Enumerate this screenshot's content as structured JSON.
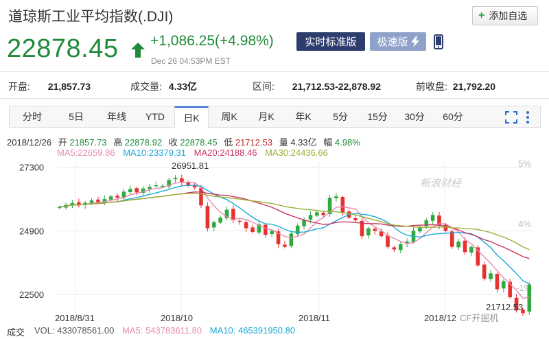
{
  "header": {
    "title": "道琼斯工业平均指数(.DJI)",
    "add_watchlist": "添加自选"
  },
  "quote": {
    "price": "22878.45",
    "change": "+1,086.25(+4.98%)",
    "timestamp": "Dec 26 04:53PM EST",
    "realtime_label": "实时标准版",
    "fast_label": "极速版",
    "color_up": "#1f8a3a"
  },
  "stats": [
    {
      "label": "开盘:",
      "value": "21,857.73"
    },
    {
      "label": "成交量:",
      "value": "4.33亿"
    },
    {
      "label": "区间:",
      "value": "21,712.53-22,878.92"
    },
    {
      "label": "前收盘:",
      "value": "21,792.20"
    }
  ],
  "tabs": [
    "分时",
    "5日",
    "年线",
    "YTD",
    "日K",
    "周K",
    "月K",
    "年K",
    "5分",
    "15分",
    "30分",
    "60分"
  ],
  "active_tab": "日K",
  "ohlc": {
    "date": "2018/12/26",
    "open_label": "开",
    "open": "21857.73",
    "high_label": "高",
    "high": "22878.92",
    "close_label": "收",
    "close": "22878.45",
    "low_label": "低",
    "low": "21712.53",
    "vol_label": "量",
    "vol": "4.33亿",
    "amp_label": "幅",
    "amp": "4.98%"
  },
  "ma": [
    {
      "label": "MA5:",
      "value": "22659.86",
      "color": "#e88ab0"
    },
    {
      "label": "MA10:",
      "value": "23379.31",
      "color": "#1aa9d8"
    },
    {
      "label": "MA20:",
      "value": "24188.46",
      "color": "#c8345e"
    },
    {
      "label": "MA30:",
      "value": "24436.66",
      "color": "#9ab034"
    }
  ],
  "volume": {
    "label": "成交",
    "vol": "VOL: 433078561.00",
    "ma5": "MA5: 543783611.80",
    "ma10": "MA10: 465391950.80"
  },
  "watermark": {
    "sina": "新浪财经",
    "wechat": "CF开掘机"
  },
  "chart_data": {
    "type": "candlestick",
    "ylim": [
      21600,
      27500
    ],
    "yticks": [
      {
        "value": 27300,
        "label": "27300"
      },
      {
        "value": 24900,
        "label": "24900"
      },
      {
        "value": 22500,
        "label": "22500"
      }
    ],
    "right_ticks": [
      "5%",
      "4%",
      "-1%"
    ],
    "x_labels": [
      "2018/8/31",
      "2018/10",
      "2018/11",
      "2018/12"
    ],
    "annotations": {
      "high_label": "26951.81",
      "low_label": "21712.53",
      "high": 26951.81,
      "low": 21712.53
    },
    "closes": [
      25800,
      25880,
      25950,
      25900,
      25960,
      26050,
      25980,
      26100,
      26200,
      26150,
      26380,
      26480,
      26350,
      26500,
      26560,
      26620,
      26600,
      26820,
      26900,
      26750,
      26600,
      26540,
      25860,
      25000,
      25230,
      25400,
      25700,
      25300,
      25250,
      25000,
      24860,
      25150,
      24750,
      24900,
      24400,
      24300,
      24800,
      25100,
      25300,
      25500,
      25600,
      25500,
      26150,
      26200,
      25600,
      25400,
      25300,
      24700,
      25000,
      24900,
      24700,
      24300,
      24200,
      24400,
      24500,
      24900,
      25050,
      25300,
      25500,
      25100,
      24900,
      24300,
      24500,
      24100,
      24300,
      23600,
      23100,
      23300,
      22700,
      23000,
      22400,
      21900,
      21800,
      22878
    ]
  }
}
